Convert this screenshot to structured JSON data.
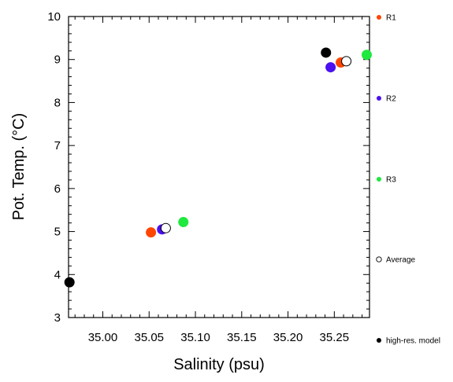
{
  "chart_data": {
    "type": "scatter",
    "xlabel": "Salinity (psu)",
    "ylabel": "Pot. Temp. (°C)",
    "xlim": [
      34.963,
      35.288
    ],
    "ylim": [
      3,
      10
    ],
    "x_ticks": [
      "35.00",
      "35.05",
      "35.10",
      "35.15",
      "35.20",
      "35.25"
    ],
    "y_ticks": [
      "3",
      "4",
      "5",
      "6",
      "7",
      "8",
      "9",
      "10"
    ],
    "grid": false,
    "legend_position": "right",
    "series": [
      {
        "name": "R1",
        "color": "#ff4500",
        "marker": "filled-circle",
        "points": [
          {
            "x": 35.052,
            "y": 4.98
          },
          {
            "x": 35.257,
            "y": 8.93
          }
        ]
      },
      {
        "name": "R2",
        "color": "#4b0ff0",
        "marker": "filled-circle",
        "points": [
          {
            "x": 35.064,
            "y": 5.05
          },
          {
            "x": 35.246,
            "y": 8.82
          }
        ]
      },
      {
        "name": "R3",
        "color": "#1fe83f",
        "marker": "filled-circle",
        "points": [
          {
            "x": 35.087,
            "y": 5.22
          },
          {
            "x": 35.285,
            "y": 9.11
          }
        ]
      },
      {
        "name": "Average",
        "color": "#000000",
        "marker": "open-circle",
        "points": [
          {
            "x": 35.068,
            "y": 5.08
          },
          {
            "x": 35.263,
            "y": 8.96
          }
        ]
      },
      {
        "name": "high-res. model",
        "color": "#000000",
        "marker": "filled-circle",
        "points": [
          {
            "x": 34.964,
            "y": 3.82
          },
          {
            "x": 35.241,
            "y": 9.16
          }
        ]
      }
    ]
  }
}
